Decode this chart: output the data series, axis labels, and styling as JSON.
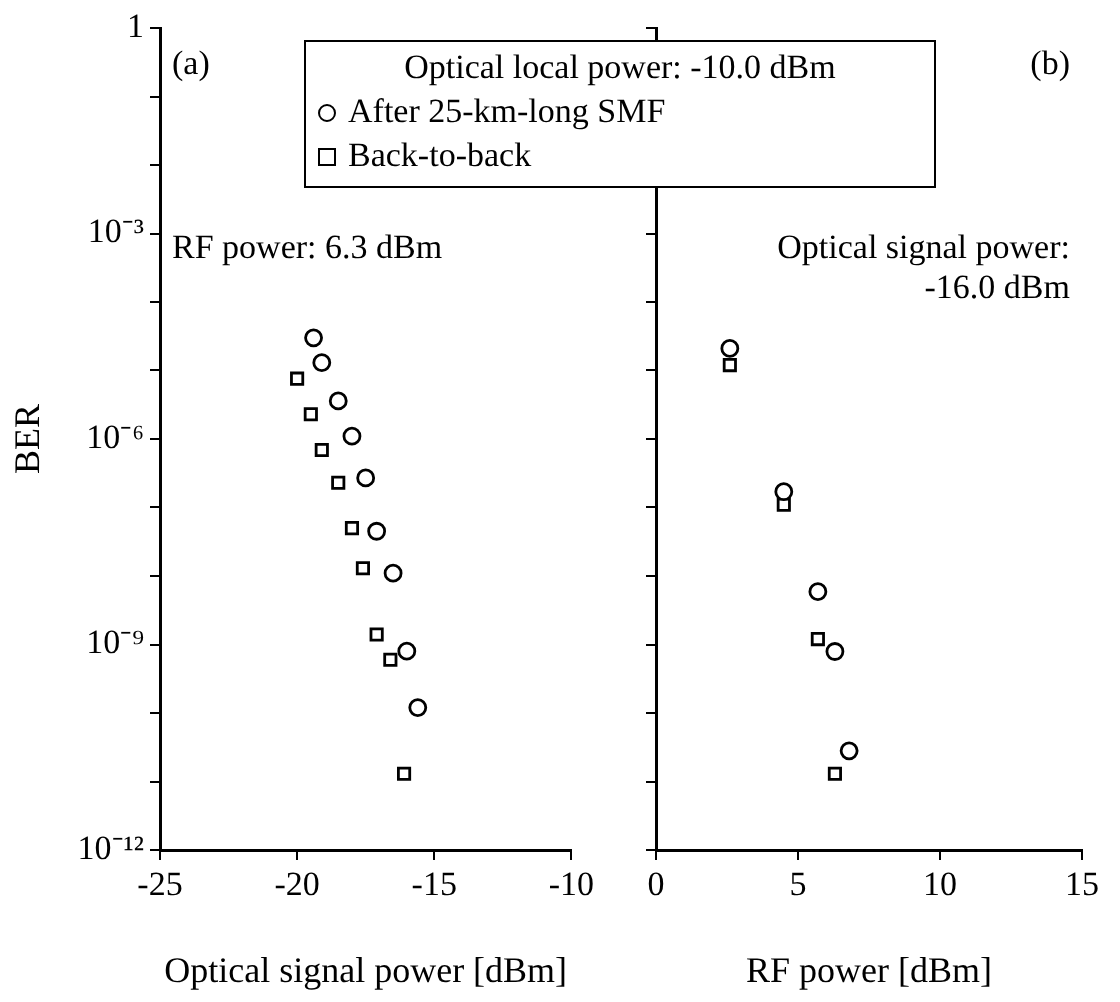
{
  "chart_data": [
    {
      "type": "scatter",
      "xlabel": "Optical signal power [dBm]",
      "ylabel": "BER",
      "log": "y",
      "grid": false,
      "legend": "top right",
      "legend_title": "Optical local power: -10.0 dBm",
      "xlim": [
        -25,
        -10
      ],
      "xticks": [
        -25,
        -20,
        -15,
        -10
      ],
      "ylim": [
        1e-12,
        1
      ],
      "yticks": [
        {
          "value": 1,
          "label": "1"
        },
        {
          "value": 0.1,
          "label": null
        },
        {
          "value": 0.01,
          "label": null
        },
        {
          "value": 0.001,
          "label": "10⁻³"
        },
        {
          "value": 0.0001,
          "label": null
        },
        {
          "value": 1e-05,
          "label": null
        },
        {
          "value": 1e-06,
          "label": "10⁻⁶"
        },
        {
          "value": 1e-07,
          "label": null
        },
        {
          "value": 1e-08,
          "label": null
        },
        {
          "value": 1e-09,
          "label": "10⁻⁹"
        },
        {
          "value": 1e-10,
          "label": null
        },
        {
          "value": 1e-11,
          "label": null
        },
        {
          "value": 1e-12,
          "label": "10⁻¹²"
        }
      ],
      "annotations": [
        "(a)",
        "RF power: 6.3 dBm"
      ],
      "series": [
        {
          "name": "After 25-km-long SMF",
          "color": "#000000",
          "marker": "circle",
          "x": [
            -19.4,
            -19.1,
            -18.5,
            -18.0,
            -17.5,
            -17.1,
            -16.5,
            -16.0,
            -15.6
          ],
          "values": [
            3e-05,
            1.3e-05,
            3.6e-06,
            1.1e-06,
            2.7e-07,
            4.5e-08,
            1.1e-08,
            8e-10,
            1.2e-10
          ]
        },
        {
          "name": "Back-to-back",
          "color": "#000000",
          "marker": "square",
          "x": [
            -20.0,
            -19.5,
            -19.1,
            -18.5,
            -18.0,
            -17.6,
            -17.1,
            -16.6,
            -16.1
          ],
          "values": [
            7.6e-06,
            2.3e-06,
            6.9e-07,
            2.3e-07,
            5e-08,
            1.3e-08,
            1.4e-09,
            6e-10,
            1.3e-11
          ]
        }
      ]
    },
    {
      "type": "scatter",
      "xlabel": "RF power [dBm]",
      "log": "y",
      "grid": false,
      "tick_labels": "x",
      "xlim": [
        0,
        15
      ],
      "xticks": [
        0,
        5,
        10,
        15
      ],
      "ylim": [
        1e-12,
        1
      ],
      "yticks": [
        1,
        0.1,
        0.01,
        0.001,
        0.0001,
        1e-05,
        1e-06,
        1e-07,
        1e-08,
        1e-09,
        1e-10,
        1e-11,
        1e-12
      ],
      "annotations": [
        "(b)",
        "Optical signal power:\n-16.0 dBm"
      ],
      "series": [
        {
          "color": "#000000",
          "marker": "circle",
          "x": [
            2.6,
            4.5,
            5.7,
            6.3,
            6.8
          ],
          "values": [
            2.1e-05,
            1.7e-07,
            5.9e-09,
            7.9e-10,
            2.8e-11
          ]
        },
        {
          "color": "#000000",
          "marker": "square",
          "x": [
            2.6,
            4.5,
            5.7,
            6.3
          ],
          "values": [
            1.2e-05,
            1.1e-07,
            1.2e-09,
            1.3e-11
          ]
        }
      ]
    }
  ]
}
